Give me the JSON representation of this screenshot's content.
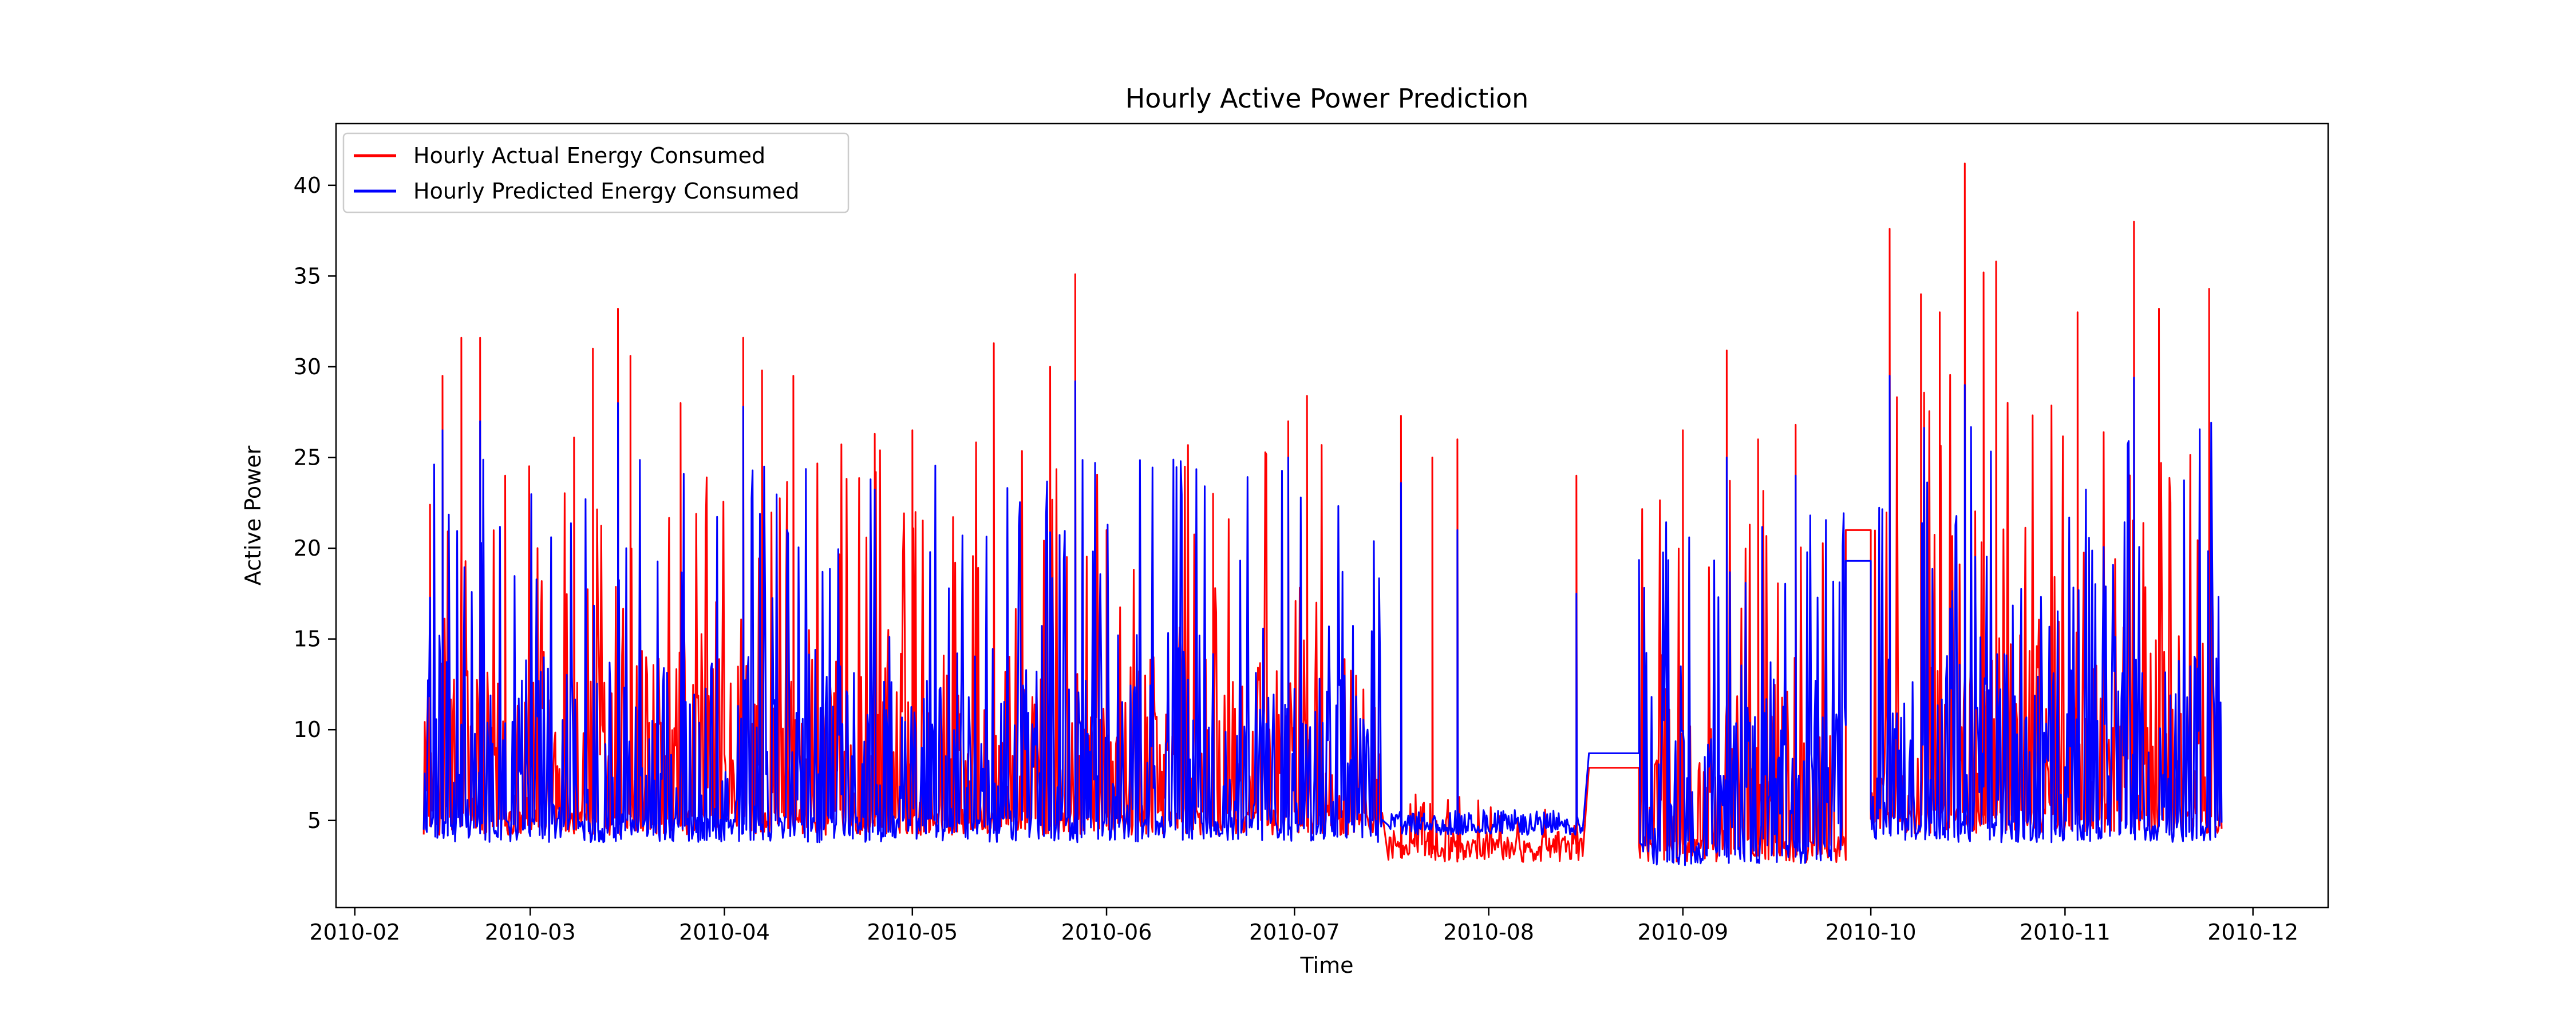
{
  "chart_data": {
    "type": "line",
    "title": "Hourly Active Power Prediction",
    "xlabel": "Time",
    "ylabel": "Active Power",
    "x_range": [
      "2010-01-29",
      "2010-12-13"
    ],
    "ylim": [
      0.2,
      43.4
    ],
    "x_ticks": [
      "2010-02-01",
      "2010-03-01",
      "2010-04-01",
      "2010-05-01",
      "2010-06-01",
      "2010-07-01",
      "2010-08-01",
      "2010-09-01",
      "2010-10-01",
      "2010-11-01",
      "2010-12-01"
    ],
    "y_ticks": [
      5,
      10,
      15,
      20,
      25,
      30,
      35,
      40
    ],
    "grid": false,
    "legend_position": "top-left",
    "data_range": [
      "2010-02-12",
      "2010-11-26"
    ],
    "series": [
      {
        "name": "Hourly Actual Energy Consumed",
        "color": "#ff0000",
        "segments": [
          {
            "start": "2010-02-12",
            "end": "2010-07-15",
            "min": 4.2,
            "max_typical": 26,
            "peaks": [
              [
                "2010-02-13",
                22.4
              ],
              [
                "2010-02-15",
                29.5
              ],
              [
                "2010-02-18",
                31.6
              ],
              [
                "2010-02-21",
                31.6
              ],
              [
                "2010-02-25",
                24.0
              ],
              [
                "2010-03-08",
                26.1
              ],
              [
                "2010-03-11",
                31.0
              ],
              [
                "2010-03-15",
                33.2
              ],
              [
                "2010-03-17",
                30.6
              ],
              [
                "2010-03-25",
                28.0
              ],
              [
                "2010-04-04",
                31.6
              ],
              [
                "2010-04-07",
                29.8
              ],
              [
                "2010-04-12",
                29.5
              ],
              [
                "2010-04-25",
                26.3
              ],
              [
                "2010-05-01",
                26.5
              ],
              [
                "2010-05-14",
                31.3
              ],
              [
                "2010-05-23",
                30.0
              ],
              [
                "2010-05-27",
                35.1
              ],
              [
                "2010-06-01",
                21.0
              ],
              [
                "2010-06-18",
                23.0
              ],
              [
                "2010-06-30",
                27.0
              ],
              [
                "2010-07-03",
                28.4
              ]
            ]
          },
          {
            "start": "2010-07-16",
            "end": "2010-08-16",
            "min": 2.7,
            "max_typical": 6.5,
            "peaks": [
              [
                "2010-07-18",
                27.3
              ],
              [
                "2010-07-23",
                25.0
              ],
              [
                "2010-07-27",
                26.0
              ],
              [
                "2010-08-15",
                24.0
              ]
            ]
          },
          {
            "start": "2010-08-17",
            "end": "2010-08-25",
            "constant": 7.9
          },
          {
            "start": "2010-08-25",
            "end": "2010-09-27",
            "min": 2.7,
            "max_typical": 24,
            "peaks": [
              [
                "2010-09-01",
                26.5
              ],
              [
                "2010-09-08",
                30.9
              ],
              [
                "2010-09-13",
                26.0
              ],
              [
                "2010-09-19",
                26.8
              ]
            ]
          },
          {
            "start": "2010-09-27",
            "end": "2010-10-01",
            "constant": 21.0
          },
          {
            "start": "2010-10-01",
            "end": "2010-11-26",
            "min": 4.3,
            "max_typical": 30,
            "peaks": [
              [
                "2010-10-04",
                37.6
              ],
              [
                "2010-10-09",
                34.0
              ],
              [
                "2010-10-12",
                33.0
              ],
              [
                "2010-10-16",
                41.2
              ],
              [
                "2010-10-19",
                35.2
              ],
              [
                "2010-10-21",
                35.8
              ],
              [
                "2010-11-03",
                33.0
              ],
              [
                "2010-11-12",
                38.0
              ],
              [
                "2010-11-16",
                33.2
              ],
              [
                "2010-11-24",
                34.3
              ]
            ]
          }
        ]
      },
      {
        "name": "Hourly Predicted Energy Consumed",
        "color": "#0000ff",
        "segments": [
          {
            "start": "2010-02-12",
            "end": "2010-07-15",
            "min": 3.8,
            "max_typical": 25,
            "peaks": [
              [
                "2010-02-15",
                26.5
              ],
              [
                "2010-02-21",
                27.0
              ],
              [
                "2010-03-15",
                28.0
              ],
              [
                "2010-04-04",
                27.8
              ],
              [
                "2010-05-27",
                29.2
              ],
              [
                "2010-06-30",
                25.0
              ]
            ]
          },
          {
            "start": "2010-07-16",
            "end": "2010-08-16",
            "min": 4.2,
            "max_typical": 5.5,
            "peaks": [
              [
                "2010-07-18",
                23.6
              ],
              [
                "2010-07-27",
                21.0
              ],
              [
                "2010-08-15",
                17.5
              ]
            ]
          },
          {
            "start": "2010-08-17",
            "end": "2010-08-25",
            "constant": 8.7
          },
          {
            "start": "2010-08-25",
            "end": "2010-09-27",
            "min": 2.5,
            "max_typical": 22,
            "peaks": [
              [
                "2010-09-08",
                25.0
              ],
              [
                "2010-09-19",
                24.0
              ]
            ]
          },
          {
            "start": "2010-09-27",
            "end": "2010-10-01",
            "constant": 19.3
          },
          {
            "start": "2010-10-01",
            "end": "2010-11-26",
            "min": 3.8,
            "max_typical": 27,
            "peaks": [
              [
                "2010-10-04",
                29.5
              ],
              [
                "2010-10-16",
                29.0
              ],
              [
                "2010-11-12",
                29.4
              ]
            ]
          }
        ]
      }
    ]
  }
}
